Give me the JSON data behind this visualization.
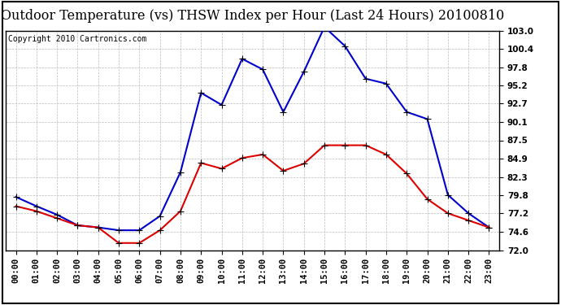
{
  "title": "Outdoor Temperature (vs) THSW Index per Hour (Last 24 Hours) 20100810",
  "copyright": "Copyright 2010 Cartronics.com",
  "hours": [
    "00:00",
    "01:00",
    "02:00",
    "03:00",
    "04:00",
    "05:00",
    "06:00",
    "07:00",
    "08:00",
    "09:00",
    "10:00",
    "11:00",
    "12:00",
    "13:00",
    "14:00",
    "15:00",
    "16:00",
    "17:00",
    "18:00",
    "19:00",
    "20:00",
    "21:00",
    "22:00",
    "23:00"
  ],
  "temp_red": [
    78.2,
    77.5,
    76.5,
    75.5,
    75.2,
    73.0,
    73.0,
    74.8,
    77.5,
    84.3,
    83.5,
    85.0,
    85.5,
    83.2,
    84.2,
    86.8,
    86.8,
    86.8,
    85.5,
    82.8,
    79.2,
    77.2,
    76.2,
    75.2
  ],
  "thsw_blue": [
    79.5,
    78.2,
    77.0,
    75.5,
    75.2,
    74.8,
    74.8,
    76.8,
    83.0,
    94.2,
    92.5,
    99.0,
    97.5,
    91.5,
    97.2,
    103.5,
    100.8,
    96.2,
    95.5,
    91.5,
    90.5,
    79.8,
    77.2,
    75.2
  ],
  "ylim_min": 72.0,
  "ylim_max": 103.0,
  "yticks": [
    72.0,
    74.6,
    77.2,
    79.8,
    82.3,
    84.9,
    87.5,
    90.1,
    92.7,
    95.2,
    97.8,
    100.4,
    103.0
  ],
  "bg_color": "#ffffff",
  "plot_bg_color": "#ffffff",
  "grid_color": "#bbbbbb",
  "red_color": "#dd0000",
  "blue_color": "#0000cc",
  "title_fontsize": 11.5,
  "copyright_fontsize": 7,
  "tick_fontsize": 7.5
}
